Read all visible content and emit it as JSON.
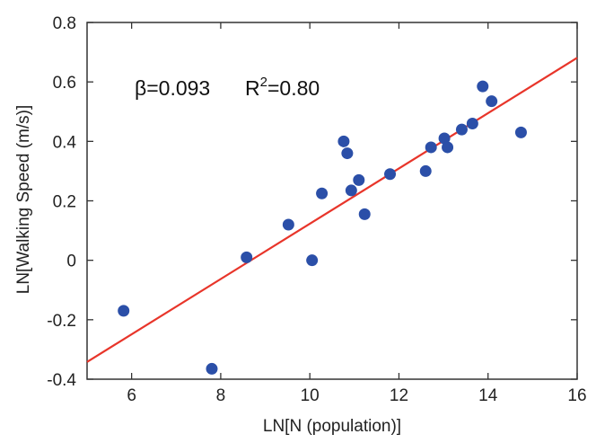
{
  "chart_data": {
    "type": "scatter",
    "title": "",
    "xlabel": "LN[N (population)]",
    "ylabel": "LN[Walking Speed (m/s)]",
    "xlim": [
      5,
      16
    ],
    "ylim": [
      -0.4,
      0.8
    ],
    "x_ticks": [
      6,
      8,
      10,
      12,
      14,
      16
    ],
    "y_ticks": [
      -0.4,
      -0.2,
      0,
      0.2,
      0.4,
      0.6,
      0.8
    ],
    "x_tick_labels": [
      "6",
      "8",
      "10",
      "12",
      "14",
      "16"
    ],
    "y_tick_labels": [
      "-0.4",
      "-0.2",
      "0",
      "0.2",
      "0.4",
      "0.6",
      "0.8"
    ],
    "grid": false,
    "point_color": "#2b4fa8",
    "fit_line_color": "#e8352a",
    "fit_line": {
      "slope": 0.093,
      "intercept": -0.807,
      "x_range": [
        5,
        16
      ]
    },
    "annotations": {
      "beta_symbol": "β",
      "beta_value": "=0.093",
      "r2_prefix": "R",
      "r2_superscript": "2",
      "r2_value": "=0.80"
    },
    "series": [
      {
        "points": [
          {
            "x": 5.82,
            "y": -0.17
          },
          {
            "x": 7.8,
            "y": -0.365
          },
          {
            "x": 8.58,
            "y": 0.01
          },
          {
            "x": 9.52,
            "y": 0.12
          },
          {
            "x": 10.05,
            "y": 0.0
          },
          {
            "x": 10.27,
            "y": 0.225
          },
          {
            "x": 10.76,
            "y": 0.4
          },
          {
            "x": 10.84,
            "y": 0.36
          },
          {
            "x": 10.93,
            "y": 0.235
          },
          {
            "x": 11.1,
            "y": 0.27
          },
          {
            "x": 11.23,
            "y": 0.155
          },
          {
            "x": 11.8,
            "y": 0.29
          },
          {
            "x": 12.6,
            "y": 0.3
          },
          {
            "x": 12.72,
            "y": 0.38
          },
          {
            "x": 13.02,
            "y": 0.41
          },
          {
            "x": 13.09,
            "y": 0.38
          },
          {
            "x": 13.41,
            "y": 0.44
          },
          {
            "x": 13.65,
            "y": 0.46
          },
          {
            "x": 13.88,
            "y": 0.585
          },
          {
            "x": 14.08,
            "y": 0.535
          },
          {
            "x": 14.74,
            "y": 0.43
          }
        ]
      }
    ]
  }
}
